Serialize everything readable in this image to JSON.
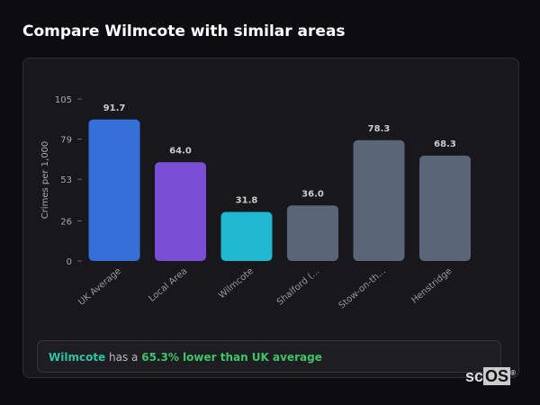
{
  "title": "Compare Wilmcote with similar areas",
  "chart_data": {
    "type": "bar",
    "categories": [
      "UK Average",
      "Local Area",
      "Wilmcote",
      "Shalford (...",
      "Stow-on-th...",
      "Henstridge"
    ],
    "values": [
      91.7,
      64.0,
      31.8,
      36.0,
      78.3,
      68.3
    ],
    "colors": [
      "#3470d8",
      "#7a4fd6",
      "#1fb8d0",
      "#5a6577",
      "#5a6577",
      "#5a6577"
    ],
    "ylabel": "Crimes per 1,000",
    "yticks": [
      0,
      26,
      53,
      79,
      105
    ],
    "ylim": [
      0,
      105
    ],
    "grid": false
  },
  "summary": {
    "area": "Wilmcote",
    "middle": " has a ",
    "stat": "65.3% lower than UK average"
  },
  "logo": {
    "prefix": "sc",
    "box": "OS",
    "mark": "®"
  }
}
